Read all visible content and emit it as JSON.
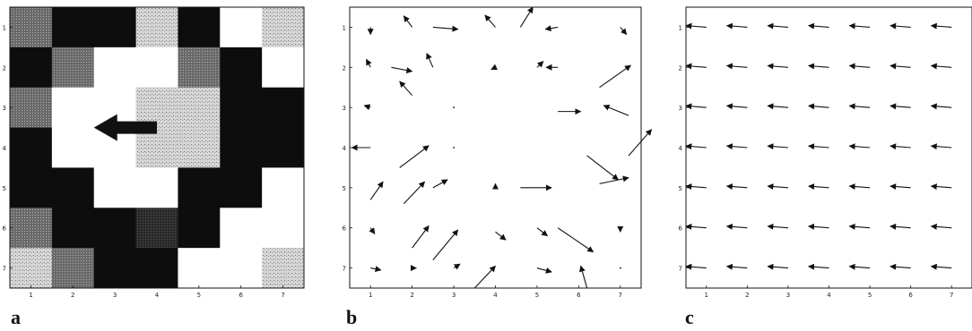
{
  "panel_labels": [
    "a",
    "b",
    "c"
  ],
  "tick_labels": [
    "1",
    "2",
    "3",
    "4",
    "5",
    "6",
    "7"
  ],
  "grid_a": [
    [
      2,
      0,
      0,
      3,
      0,
      4,
      3
    ],
    [
      0,
      2,
      4,
      4,
      2,
      0,
      4
    ],
    [
      2,
      4,
      4,
      3,
      3,
      0,
      0
    ],
    [
      0,
      4,
      4,
      3,
      3,
      0,
      0
    ],
    [
      0,
      0,
      4,
      4,
      0,
      0,
      4
    ],
    [
      2,
      0,
      0,
      1,
      0,
      4,
      4
    ],
    [
      3,
      2,
      0,
      0,
      4,
      4,
      3
    ]
  ],
  "big_arrow_a": {
    "row": 3.5,
    "from_col": 4.0,
    "to_col": 2.5
  },
  "field_b": [
    [
      1.0,
      1.0,
      0.0,
      0.18
    ],
    [
      2.0,
      1.0,
      -0.2,
      -0.28
    ],
    [
      2.5,
      1.0,
      0.6,
      0.05
    ],
    [
      4.0,
      1.0,
      -0.25,
      -0.3
    ],
    [
      4.6,
      1.0,
      0.3,
      -0.5
    ],
    [
      5.5,
      1.0,
      -0.3,
      0.05
    ],
    [
      7.0,
      1.0,
      0.15,
      0.18
    ],
    [
      1.0,
      2.0,
      -0.1,
      -0.2
    ],
    [
      1.5,
      2.0,
      0.5,
      0.1
    ],
    [
      2.5,
      2.0,
      -0.15,
      -0.35
    ],
    [
      4.0,
      2.0,
      -0.1,
      0.05
    ],
    [
      5.0,
      2.0,
      0.15,
      -0.15
    ],
    [
      5.5,
      2.0,
      -0.28,
      0.0
    ],
    [
      6.5,
      2.5,
      0.75,
      -0.55
    ],
    [
      1.0,
      3.0,
      -0.15,
      -0.05
    ],
    [
      2.0,
      2.7,
      -0.3,
      -0.35
    ],
    [
      3.0,
      3.0,
      0.0,
      0.0
    ],
    [
      5.5,
      3.1,
      0.55,
      0.0
    ],
    [
      7.2,
      3.2,
      -0.6,
      -0.25
    ],
    [
      1.0,
      4.0,
      -0.45,
      0.0
    ],
    [
      1.7,
      4.5,
      0.7,
      -0.55
    ],
    [
      3.0,
      4.0,
      0.0,
      0.0
    ],
    [
      6.2,
      4.2,
      0.75,
      0.6
    ],
    [
      7.2,
      4.2,
      0.55,
      -0.65
    ],
    [
      1.0,
      5.3,
      0.3,
      -0.45
    ],
    [
      1.8,
      5.4,
      0.5,
      -0.55
    ],
    [
      2.5,
      5.0,
      0.35,
      -0.2
    ],
    [
      4.0,
      5.0,
      0.0,
      -0.1
    ],
    [
      4.6,
      5.0,
      0.75,
      0.0
    ],
    [
      6.5,
      4.9,
      0.7,
      -0.15
    ],
    [
      1.0,
      6.0,
      0.1,
      0.15
    ],
    [
      2.0,
      6.5,
      0.4,
      -0.55
    ],
    [
      2.5,
      6.8,
      0.6,
      -0.75
    ],
    [
      4.0,
      6.1,
      0.25,
      0.2
    ],
    [
      5.0,
      6.0,
      0.25,
      0.2
    ],
    [
      5.5,
      6.0,
      0.85,
      0.6
    ],
    [
      7.0,
      6.0,
      0.0,
      0.1
    ],
    [
      1.0,
      7.0,
      0.25,
      0.05
    ],
    [
      2.0,
      7.0,
      0.1,
      0.0
    ],
    [
      3.0,
      7.0,
      0.15,
      -0.1
    ],
    [
      3.5,
      7.5,
      0.5,
      -0.55
    ],
    [
      5.0,
      7.0,
      0.35,
      0.1
    ],
    [
      6.2,
      7.5,
      -0.15,
      -0.55
    ],
    [
      7.0,
      7.0,
      0.0,
      0.0
    ]
  ],
  "field_c": [
    [
      1,
      1,
      -0.5,
      -0.04
    ],
    [
      2,
      1,
      -0.5,
      -0.04
    ],
    [
      3,
      1,
      -0.5,
      -0.04
    ],
    [
      4,
      1,
      -0.5,
      -0.04
    ],
    [
      5,
      1,
      -0.5,
      -0.04
    ],
    [
      6,
      1,
      -0.5,
      -0.04
    ],
    [
      7,
      1,
      -0.5,
      -0.04
    ],
    [
      1,
      2,
      -0.5,
      -0.04
    ],
    [
      2,
      2,
      -0.5,
      -0.04
    ],
    [
      3,
      2,
      -0.5,
      -0.04
    ],
    [
      4,
      2,
      -0.5,
      -0.04
    ],
    [
      5,
      2,
      -0.5,
      -0.04
    ],
    [
      6,
      2,
      -0.5,
      -0.04
    ],
    [
      7,
      2,
      -0.5,
      -0.04
    ],
    [
      1,
      3,
      -0.5,
      -0.04
    ],
    [
      2,
      3,
      -0.5,
      -0.04
    ],
    [
      3,
      3,
      -0.5,
      -0.04
    ],
    [
      4,
      3,
      -0.5,
      -0.04
    ],
    [
      5,
      3,
      -0.5,
      -0.04
    ],
    [
      6,
      3,
      -0.5,
      -0.04
    ],
    [
      7,
      3,
      -0.5,
      -0.04
    ],
    [
      1,
      4,
      -0.5,
      -0.04
    ],
    [
      2,
      4,
      -0.5,
      -0.04
    ],
    [
      3,
      4,
      -0.5,
      -0.04
    ],
    [
      4,
      4,
      -0.5,
      -0.04
    ],
    [
      5,
      4,
      -0.5,
      -0.04
    ],
    [
      6,
      4,
      -0.5,
      -0.04
    ],
    [
      7,
      4,
      -0.5,
      -0.04
    ],
    [
      1,
      5,
      -0.5,
      -0.04
    ],
    [
      2,
      5,
      -0.5,
      -0.04
    ],
    [
      3,
      5,
      -0.5,
      -0.04
    ],
    [
      4,
      5,
      -0.5,
      -0.04
    ],
    [
      5,
      5,
      -0.5,
      -0.04
    ],
    [
      6,
      5,
      -0.5,
      -0.04
    ],
    [
      7,
      5,
      -0.5,
      -0.04
    ],
    [
      1,
      6,
      -0.5,
      -0.04
    ],
    [
      2,
      6,
      -0.5,
      -0.04
    ],
    [
      3,
      6,
      -0.5,
      -0.04
    ],
    [
      4,
      6,
      -0.5,
      -0.04
    ],
    [
      5,
      6,
      -0.5,
      -0.04
    ],
    [
      6,
      6,
      -0.5,
      -0.04
    ],
    [
      7,
      6,
      -0.5,
      -0.04
    ],
    [
      1,
      7,
      -0.5,
      -0.04
    ],
    [
      2,
      7,
      -0.5,
      -0.04
    ],
    [
      3,
      7,
      -0.5,
      -0.04
    ],
    [
      4,
      7,
      -0.5,
      -0.04
    ],
    [
      5,
      7,
      -0.5,
      -0.04
    ],
    [
      6,
      7,
      -0.5,
      -0.04
    ],
    [
      7,
      7,
      -0.5,
      -0.04
    ]
  ],
  "colors": {
    "ink": "#111111",
    "shade_dark": "#555555",
    "shade_mid": "#7a7a7a",
    "shade_light": "#cfcfcf",
    "shade_white": "#ffffff"
  }
}
